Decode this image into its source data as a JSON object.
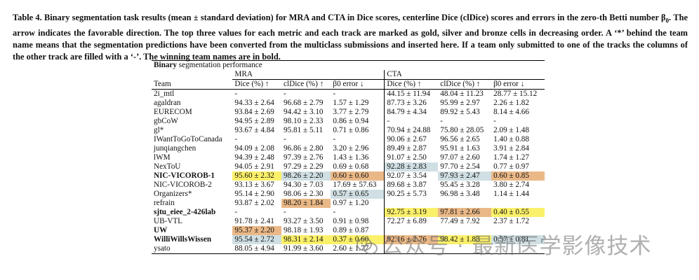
{
  "caption": {
    "label": "Table 4.",
    "text_before": " Binary segmentation task results (mean ± standard deviation) for MRA and CTA in Dice scores, centerline Dice (clDice) scores and errors in the zero-th Betti number ",
    "beta": "β",
    "beta_sub": "0",
    "text_after": ". The arrow indicates the favorable direction. The top three values for each metric and each track are marked as gold, silver and bronze cells in decreasing order. A ‘*’ behind the team name means that the segmentation predictions have been converted from the multiclass submissions and inserted here. If a team only submitted to one of the tracks the columns of the other track are filled with a ‘-’. The winning team names are in bold."
  },
  "table": {
    "title_bold": "Binary",
    "title_rest": " segmentation performance",
    "groups": [
      "MRA",
      "CTA"
    ],
    "headers": [
      "Team",
      "Dice (%) ↑",
      "clDice (%) ↑",
      "β0 error ↓",
      "Dice (%) ↑",
      "clDice (%) ↑",
      "β0 error ↓"
    ],
    "rows": [
      {
        "team": "2i_mtl",
        "bold": false,
        "cells": [
          "-",
          "-",
          "-",
          "44.15 ± 11.94",
          "48.04 ± 11.23",
          "28.77 ± 15.12"
        ],
        "hl": [
          "",
          "",
          "",
          "",
          "",
          ""
        ]
      },
      {
        "team": "agaldran",
        "bold": false,
        "cells": [
          "94.33 ± 2.64",
          "96.68 ± 2.79",
          "1.57 ± 1.29",
          "87.73 ± 3.26",
          "95.99 ± 2.97",
          "2.26 ± 1.82"
        ],
        "hl": [
          "",
          "",
          "",
          "",
          "",
          ""
        ]
      },
      {
        "team": "EURECOM",
        "bold": false,
        "cells": [
          "93.84 ± 2.69",
          "94.42 ± 3.10",
          "3.77 ± 2.79",
          "84.79 ± 4.34",
          "89.92 ± 5.43",
          "8.14 ± 4.66"
        ],
        "hl": [
          "",
          "",
          "",
          "",
          "",
          ""
        ]
      },
      {
        "team": "gbCoW",
        "bold": false,
        "cells": [
          "94.95 ± 2.89",
          "98.10 ± 2.33",
          "0.86 ± 0.94",
          "-",
          "-",
          "-"
        ],
        "hl": [
          "",
          "",
          "",
          "",
          "",
          ""
        ]
      },
      {
        "team": "gl*",
        "bold": false,
        "cells": [
          "93.67 ± 4.84",
          "95.81 ± 5.11",
          "0.71 ± 0.86",
          "70.94 ± 24.88",
          "75.80 ± 28.05",
          "2.09 ± 1.48"
        ],
        "hl": [
          "",
          "",
          "",
          "",
          "",
          ""
        ]
      },
      {
        "team": "IWantToGoToCanada",
        "bold": false,
        "cells": [
          "-",
          "-",
          "-",
          "90.06 ± 2.67",
          "96.56 ± 2.65",
          "1.40 ± 0.88"
        ],
        "hl": [
          "",
          "",
          "",
          "",
          "",
          ""
        ]
      },
      {
        "team": "junqiangchen",
        "bold": false,
        "cells": [
          "94.09 ± 2.08",
          "96.86 ± 2.80",
          "3.20 ± 2.96",
          "89.49 ± 2.87",
          "95.91 ± 1.63",
          "3.91 ± 2.84"
        ],
        "hl": [
          "",
          "",
          "",
          "",
          "",
          ""
        ]
      },
      {
        "team": "lWM",
        "bold": false,
        "cells": [
          "94.39 ± 2.48",
          "97.39 ± 2.76",
          "1.43 ± 1.36",
          "91.07 ± 2.50",
          "97.07 ± 2.60",
          "1.74 ± 1.27"
        ],
        "hl": [
          "",
          "",
          "",
          "",
          "",
          ""
        ]
      },
      {
        "team": "NexToU",
        "bold": false,
        "cells": [
          "94.05 ± 2.91",
          "97.29 ± 2.29",
          "0.69 ± 0.68",
          "92.28 ± 2.83",
          "97.70 ± 2.54",
          "0.77 ± 0.97"
        ],
        "hl": [
          "",
          "",
          "",
          "silver",
          "",
          ""
        ]
      },
      {
        "team": "NIC-VICOROB-1",
        "bold": true,
        "cells": [
          "95.60 ± 2.32",
          "98.26 ± 2.20",
          "0.60 ± 0.60",
          "92.07 ± 3.54",
          "97.93 ± 2.47",
          "0.60 ± 0.85"
        ],
        "hl": [
          "gold",
          "silver",
          "bronze",
          "",
          "silver",
          "bronze"
        ]
      },
      {
        "team": "NIC-VICOROB-2",
        "bold": false,
        "cells": [
          "93.13 ± 3.67",
          "94.30 ± 7.03",
          "17.69 ± 57.63",
          "89.68 ± 3.87",
          "95.45 ± 3.28",
          "3.80 ± 2.74"
        ],
        "hl": [
          "",
          "",
          "",
          "",
          "",
          ""
        ]
      },
      {
        "team": "Organizers*",
        "bold": false,
        "cells": [
          "95.14 ± 2.90",
          "98.06 ± 2.30",
          "0.57 ± 0.65",
          "90.25 ± 5.73",
          "96.98 ± 3.48",
          "1.14 ± 1.44"
        ],
        "hl": [
          "",
          "",
          "silver",
          "",
          "",
          ""
        ]
      },
      {
        "team": "refrain",
        "bold": false,
        "cells": [
          "93.87 ± 2.02",
          "98.20 ± 1.84",
          "0.97 ± 1.20",
          "",
          "",
          ""
        ],
        "hl": [
          "",
          "bronze",
          "",
          "",
          "",
          ""
        ]
      },
      {
        "team": "sjtu_eiee_2-426lab",
        "bold": true,
        "cells": [
          "-",
          "-",
          "-",
          "92.75 ± 3.19",
          "97.81 ± 2.66",
          "0.40 ± 0.55"
        ],
        "hl": [
          "",
          "",
          "",
          "gold",
          "bronze",
          "gold"
        ]
      },
      {
        "team": "UB-VTL",
        "bold": false,
        "cells": [
          "91.78 ± 2.41",
          "93.27 ± 3.50",
          "0.91 ± 0.98",
          "72.27 ± 6.89",
          "77.49 ± 7.92",
          "2.37 ± 1.72"
        ],
        "hl": [
          "",
          "",
          "",
          "",
          "",
          ""
        ]
      },
      {
        "team": "UW",
        "bold": true,
        "cells": [
          "95.37 ± 2.20",
          "98.18 ± 1.93",
          "0.89 ± 0.87",
          "",
          "",
          ""
        ],
        "hl": [
          "bronze",
          "",
          "",
          "",
          "",
          ""
        ]
      },
      {
        "team": "WilliWillsWissen",
        "bold": true,
        "cells": [
          "95.54 ± 2.72",
          "98.31 ± 2.14",
          "0.37 ± 0.60",
          "92.16 ± 2.76",
          "98.42 ± 1.83",
          "0.57 ± 0.81"
        ],
        "hl": [
          "silver",
          "gold",
          "gold",
          "bronze",
          "gold",
          "silver"
        ]
      },
      {
        "team": "ysato",
        "bold": false,
        "cells": [
          "88.05 ± 4.94",
          "91.99 ± 3.60",
          "2.60 ± 1.77",
          "",
          "",
          ""
        ],
        "hl": [
          "",
          "",
          "",
          "",
          "",
          ""
        ]
      }
    ]
  },
  "watermark": {
    "text": "公众号 · 最新医学影像技术",
    "icon": "wechat-icon"
  }
}
